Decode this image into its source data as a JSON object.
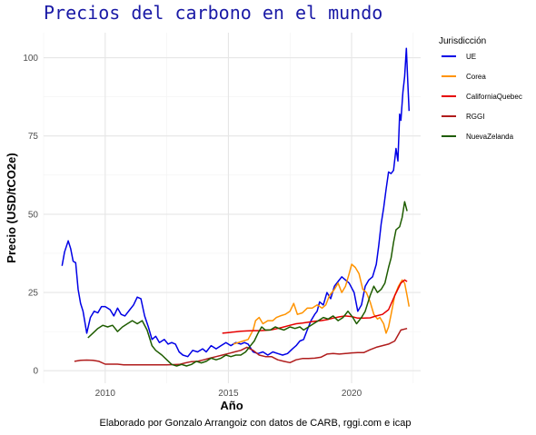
{
  "chart_data": {
    "type": "line",
    "title": "Precios del carbono en el mundo",
    "xlabel": "Año",
    "ylabel": "Precio (USD/tCO2e)",
    "caption": "Elaborado por Gonzalo Arrangoiz con datos de CARB, rggi.com e icap",
    "legend_title": "Jurisdicción",
    "legend_position": "right",
    "grid": true,
    "xlim": [
      2007.5,
      2022.8
    ],
    "ylim": [
      -4,
      108
    ],
    "x_ticks": [
      2010,
      2015,
      2020
    ],
    "x_minor": [
      2007.5,
      2012.5,
      2017.5,
      2022.5
    ],
    "y_ticks": [
      0,
      25,
      50,
      75,
      100
    ],
    "series": [
      {
        "name": "UE",
        "color": "#0000e6",
        "points": [
          [
            2008.25,
            33.5
          ],
          [
            2008.35,
            38
          ],
          [
            2008.5,
            41.5
          ],
          [
            2008.6,
            39
          ],
          [
            2008.7,
            35
          ],
          [
            2008.8,
            34.5
          ],
          [
            2008.9,
            26
          ],
          [
            2009.0,
            21.5
          ],
          [
            2009.1,
            19
          ],
          [
            2009.25,
            12
          ],
          [
            2009.4,
            17
          ],
          [
            2009.55,
            19
          ],
          [
            2009.7,
            18.5
          ],
          [
            2009.85,
            20.5
          ],
          [
            2010.0,
            20.5
          ],
          [
            2010.2,
            19.5
          ],
          [
            2010.35,
            17.5
          ],
          [
            2010.5,
            20
          ],
          [
            2010.65,
            18
          ],
          [
            2010.8,
            17.5
          ],
          [
            2011.0,
            19.5
          ],
          [
            2011.15,
            21
          ],
          [
            2011.3,
            23.5
          ],
          [
            2011.45,
            23
          ],
          [
            2011.6,
            17.5
          ],
          [
            2011.75,
            14
          ],
          [
            2011.9,
            10
          ],
          [
            2012.05,
            11
          ],
          [
            2012.2,
            9
          ],
          [
            2012.4,
            10
          ],
          [
            2012.55,
            8.5
          ],
          [
            2012.7,
            9
          ],
          [
            2012.85,
            8.5
          ],
          [
            2013.0,
            6
          ],
          [
            2013.15,
            5
          ],
          [
            2013.35,
            4.5
          ],
          [
            2013.55,
            6.5
          ],
          [
            2013.75,
            6
          ],
          [
            2013.95,
            7
          ],
          [
            2014.1,
            6
          ],
          [
            2014.3,
            8
          ],
          [
            2014.5,
            7
          ],
          [
            2014.7,
            8
          ],
          [
            2014.9,
            9
          ],
          [
            2015.1,
            8
          ],
          [
            2015.3,
            9
          ],
          [
            2015.5,
            8.5
          ],
          [
            2015.65,
            9
          ],
          [
            2015.8,
            8.5
          ],
          [
            2016.0,
            6
          ],
          [
            2016.2,
            5.5
          ],
          [
            2016.4,
            6
          ],
          [
            2016.6,
            5
          ],
          [
            2016.8,
            6
          ],
          [
            2017.0,
            5.5
          ],
          [
            2017.2,
            5
          ],
          [
            2017.4,
            5.5
          ],
          [
            2017.6,
            7
          ],
          [
            2017.75,
            8
          ],
          [
            2017.9,
            9.5
          ],
          [
            2018.05,
            10
          ],
          [
            2018.2,
            13
          ],
          [
            2018.35,
            16
          ],
          [
            2018.5,
            18
          ],
          [
            2018.6,
            19
          ],
          [
            2018.7,
            22
          ],
          [
            2018.85,
            21
          ],
          [
            2019.0,
            25
          ],
          [
            2019.15,
            23
          ],
          [
            2019.3,
            27
          ],
          [
            2019.45,
            28.5
          ],
          [
            2019.6,
            30
          ],
          [
            2019.75,
            29
          ],
          [
            2019.9,
            28
          ],
          [
            2020.1,
            25
          ],
          [
            2020.25,
            19
          ],
          [
            2020.4,
            21
          ],
          [
            2020.55,
            27
          ],
          [
            2020.7,
            29
          ],
          [
            2020.85,
            30
          ],
          [
            2021.0,
            34
          ],
          [
            2021.1,
            40
          ],
          [
            2021.2,
            47
          ],
          [
            2021.3,
            52
          ],
          [
            2021.4,
            58
          ],
          [
            2021.5,
            63.5
          ],
          [
            2021.6,
            63
          ],
          [
            2021.7,
            64
          ],
          [
            2021.8,
            71
          ],
          [
            2021.88,
            67
          ],
          [
            2021.95,
            82
          ],
          [
            2022.0,
            80
          ],
          [
            2022.08,
            89
          ],
          [
            2022.15,
            94
          ],
          [
            2022.22,
            103
          ],
          [
            2022.28,
            92
          ],
          [
            2022.33,
            83
          ]
        ]
      },
      {
        "name": "Corea",
        "color": "#ff9300",
        "points": [
          [
            2015.2,
            8.5
          ],
          [
            2015.4,
            9
          ],
          [
            2015.6,
            9.5
          ],
          [
            2015.8,
            10
          ],
          [
            2016.0,
            13
          ],
          [
            2016.1,
            16
          ],
          [
            2016.25,
            17
          ],
          [
            2016.4,
            15
          ],
          [
            2016.6,
            16
          ],
          [
            2016.8,
            16
          ],
          [
            2016.95,
            17
          ],
          [
            2017.1,
            17.5
          ],
          [
            2017.3,
            18
          ],
          [
            2017.5,
            19
          ],
          [
            2017.65,
            21.5
          ],
          [
            2017.8,
            18
          ],
          [
            2018.0,
            18.5
          ],
          [
            2018.2,
            20
          ],
          [
            2018.4,
            20
          ],
          [
            2018.6,
            21
          ],
          [
            2018.8,
            20
          ],
          [
            2018.95,
            21
          ],
          [
            2019.1,
            24
          ],
          [
            2019.3,
            26
          ],
          [
            2019.45,
            28
          ],
          [
            2019.6,
            25
          ],
          [
            2019.75,
            27
          ],
          [
            2019.9,
            31
          ],
          [
            2020.0,
            34
          ],
          [
            2020.15,
            33
          ],
          [
            2020.3,
            31
          ],
          [
            2020.45,
            26
          ],
          [
            2020.6,
            25
          ],
          [
            2020.75,
            22
          ],
          [
            2020.9,
            18
          ],
          [
            2021.05,
            16.5
          ],
          [
            2021.15,
            17
          ],
          [
            2021.3,
            15
          ],
          [
            2021.4,
            12
          ],
          [
            2021.5,
            14
          ],
          [
            2021.6,
            18
          ],
          [
            2021.75,
            24
          ],
          [
            2021.9,
            27
          ],
          [
            2022.05,
            29
          ],
          [
            2022.15,
            28
          ],
          [
            2022.25,
            24
          ],
          [
            2022.33,
            20.5
          ]
        ]
      },
      {
        "name": "CaliforniaQuebec",
        "color": "#e60000",
        "points": [
          [
            2014.75,
            12
          ],
          [
            2015.0,
            12.2
          ],
          [
            2015.25,
            12.4
          ],
          [
            2015.5,
            12.6
          ],
          [
            2015.75,
            12.7
          ],
          [
            2016.0,
            12.8
          ],
          [
            2016.25,
            12.8
          ],
          [
            2016.5,
            12.9
          ],
          [
            2016.75,
            13.1
          ],
          [
            2017.0,
            13.5
          ],
          [
            2017.25,
            14
          ],
          [
            2017.5,
            14.5
          ],
          [
            2017.75,
            15
          ],
          [
            2018.0,
            15.2
          ],
          [
            2018.25,
            15.5
          ],
          [
            2018.5,
            15.8
          ],
          [
            2018.75,
            16
          ],
          [
            2019.0,
            16.3
          ],
          [
            2019.25,
            16.8
          ],
          [
            2019.5,
            17.2
          ],
          [
            2019.75,
            17.5
          ],
          [
            2020.0,
            17.3
          ],
          [
            2020.25,
            16.8
          ],
          [
            2020.5,
            16.8
          ],
          [
            2020.75,
            16.9
          ],
          [
            2021.0,
            17.5
          ],
          [
            2021.25,
            18
          ],
          [
            2021.5,
            19.5
          ],
          [
            2021.75,
            24
          ],
          [
            2022.0,
            28
          ],
          [
            2022.15,
            29
          ],
          [
            2022.25,
            28.5
          ]
        ]
      },
      {
        "name": "RGGI",
        "color": "#b01c1c",
        "points": [
          [
            2008.75,
            3
          ],
          [
            2009.0,
            3.3
          ],
          [
            2009.25,
            3.4
          ],
          [
            2009.5,
            3.3
          ],
          [
            2009.75,
            3
          ],
          [
            2010.0,
            2.1
          ],
          [
            2010.25,
            2.1
          ],
          [
            2010.5,
            2.1
          ],
          [
            2010.75,
            1.9
          ],
          [
            2011.0,
            1.9
          ],
          [
            2011.5,
            1.9
          ],
          [
            2012.0,
            1.9
          ],
          [
            2012.5,
            1.9
          ],
          [
            2013.0,
            2
          ],
          [
            2013.25,
            2.5
          ],
          [
            2013.5,
            2.9
          ],
          [
            2013.75,
            3
          ],
          [
            2014.0,
            3.5
          ],
          [
            2014.25,
            4
          ],
          [
            2014.5,
            4.5
          ],
          [
            2014.75,
            5
          ],
          [
            2015.0,
            5.5
          ],
          [
            2015.25,
            6
          ],
          [
            2015.5,
            6.5
          ],
          [
            2015.75,
            7.5
          ],
          [
            2016.0,
            6.5
          ],
          [
            2016.25,
            5
          ],
          [
            2016.5,
            4.5
          ],
          [
            2016.75,
            4.5
          ],
          [
            2017.0,
            3.5
          ],
          [
            2017.25,
            3
          ],
          [
            2017.5,
            2.6
          ],
          [
            2017.75,
            3.5
          ],
          [
            2018.0,
            3.9
          ],
          [
            2018.25,
            3.9
          ],
          [
            2018.5,
            4
          ],
          [
            2018.75,
            4.3
          ],
          [
            2019.0,
            5.3
          ],
          [
            2019.25,
            5.5
          ],
          [
            2019.5,
            5.3
          ],
          [
            2019.75,
            5.5
          ],
          [
            2020.0,
            5.7
          ],
          [
            2020.25,
            5.8
          ],
          [
            2020.5,
            5.8
          ],
          [
            2020.75,
            6.7
          ],
          [
            2021.0,
            7.5
          ],
          [
            2021.25,
            8
          ],
          [
            2021.5,
            8.5
          ],
          [
            2021.75,
            9.5
          ],
          [
            2022.0,
            13
          ],
          [
            2022.25,
            13.5
          ]
        ]
      },
      {
        "name": "NuevaZelanda",
        "color": "#1e5c00",
        "points": [
          [
            2009.3,
            10.5
          ],
          [
            2009.5,
            12
          ],
          [
            2009.7,
            13.5
          ],
          [
            2009.9,
            14.5
          ],
          [
            2010.1,
            14
          ],
          [
            2010.3,
            14.5
          ],
          [
            2010.5,
            12.5
          ],
          [
            2010.7,
            14
          ],
          [
            2010.9,
            15
          ],
          [
            2011.1,
            16
          ],
          [
            2011.3,
            15
          ],
          [
            2011.5,
            16
          ],
          [
            2011.7,
            13
          ],
          [
            2011.9,
            8
          ],
          [
            2012.05,
            6.5
          ],
          [
            2012.3,
            5
          ],
          [
            2012.5,
            3.5
          ],
          [
            2012.7,
            2
          ],
          [
            2012.9,
            1.5
          ],
          [
            2013.1,
            2
          ],
          [
            2013.3,
            1.5
          ],
          [
            2013.5,
            2
          ],
          [
            2013.7,
            3
          ],
          [
            2013.9,
            2.5
          ],
          [
            2014.1,
            3
          ],
          [
            2014.3,
            4
          ],
          [
            2014.5,
            3.5
          ],
          [
            2014.7,
            4
          ],
          [
            2014.9,
            5
          ],
          [
            2015.1,
            4.5
          ],
          [
            2015.3,
            5
          ],
          [
            2015.5,
            5
          ],
          [
            2015.7,
            6
          ],
          [
            2015.9,
            8
          ],
          [
            2016.05,
            9.5
          ],
          [
            2016.2,
            12
          ],
          [
            2016.35,
            14
          ],
          [
            2016.5,
            13
          ],
          [
            2016.7,
            13
          ],
          [
            2016.9,
            14
          ],
          [
            2017.05,
            13.5
          ],
          [
            2017.25,
            13
          ],
          [
            2017.5,
            14
          ],
          [
            2017.7,
            13.5
          ],
          [
            2017.9,
            14
          ],
          [
            2018.05,
            13
          ],
          [
            2018.25,
            14
          ],
          [
            2018.45,
            15
          ],
          [
            2018.65,
            16
          ],
          [
            2018.85,
            17
          ],
          [
            2019.05,
            16.5
          ],
          [
            2019.25,
            17.5
          ],
          [
            2019.45,
            16
          ],
          [
            2019.65,
            17
          ],
          [
            2019.85,
            19
          ],
          [
            2020.05,
            17
          ],
          [
            2020.2,
            15
          ],
          [
            2020.4,
            17
          ],
          [
            2020.55,
            19
          ],
          [
            2020.75,
            24
          ],
          [
            2020.9,
            27
          ],
          [
            2021.05,
            25
          ],
          [
            2021.2,
            26
          ],
          [
            2021.35,
            28
          ],
          [
            2021.5,
            33
          ],
          [
            2021.6,
            36
          ],
          [
            2021.7,
            41
          ],
          [
            2021.8,
            45
          ],
          [
            2021.95,
            46
          ],
          [
            2022.05,
            49
          ],
          [
            2022.15,
            54
          ],
          [
            2022.25,
            51
          ]
        ]
      }
    ]
  }
}
